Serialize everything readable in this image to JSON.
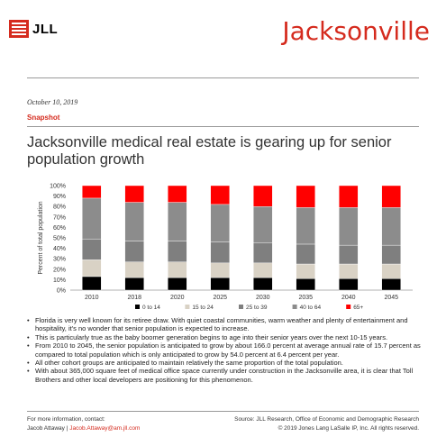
{
  "header": {
    "logo_text": "JLL",
    "city": "Jacksonville"
  },
  "meta": {
    "date": "October 10, 2019",
    "section": "Snapshot"
  },
  "headline": "Jacksonville medical real estate is gearing up for senior population growth",
  "chart_data": {
    "type": "bar",
    "stacked": true,
    "normalized": true,
    "categories": [
      "2010",
      "2018",
      "2020",
      "2025",
      "2030",
      "2035",
      "2040",
      "2045"
    ],
    "series": [
      {
        "name": "0 to 14",
        "color": "#000000",
        "values": [
          13,
          12,
          12,
          12,
          12,
          11,
          11,
          11
        ]
      },
      {
        "name": "15 to 24",
        "color": "#d9d2c5",
        "values": [
          16,
          15,
          15,
          14,
          14,
          14,
          14,
          14
        ]
      },
      {
        "name": "25 to 39",
        "color": "#7f7f7f",
        "values": [
          20,
          20,
          20,
          20,
          19,
          19,
          18,
          18
        ]
      },
      {
        "name": "40 to 64",
        "color": "#8c8c8c",
        "values": [
          39,
          37,
          37,
          36,
          35,
          35,
          36,
          36
        ]
      },
      {
        "name": "65+",
        "color": "#ff0000",
        "values": [
          12,
          16,
          16,
          18,
          20,
          21,
          21,
          21
        ]
      }
    ],
    "ylabel": "Percent of total population",
    "ylim": [
      0,
      100
    ],
    "yticks": [
      "0%",
      "10%",
      "20%",
      "30%",
      "40%",
      "50%",
      "60%",
      "70%",
      "80%",
      "90%",
      "100%"
    ],
    "legend_position": "bottom"
  },
  "bullets": [
    "Florida is very well known for its retiree draw.  With quiet coastal communities, warm weather and plenty of entertainment and hospitality, it's no wonder that senior population is expected to increase.",
    "This is particularly true as the baby boomer generation begins to age into their senior years over the next 10-15 years.",
    "From 2010 to 2045, the senior population is anticipated to grow by about 166.0 percent at average annual rate of 15.7 percent as compared to total population which is only anticipated to grow by 54.0 percent at 6.4 percent per year.",
    "All other cohort groups are anticipated to maintain relatively the same proportion of the total population.",
    "With about 365,000 square feet of medical office space currently under construction in the Jacksonville area, it is clear that Toll Brothers and other local developers are positioning for this phenomenon."
  ],
  "footer": {
    "contact_label": "For more information, contact:",
    "contact_name": "Jacob Attaway",
    "separator": "|",
    "contact_email": "Jacob.Attaway@am.jll.com",
    "source": "Source: JLL Research, Office of Economic and Demographic Research",
    "copyright": "© 2019 Jones Lang LaSalle IP, Inc. All rights reserved."
  }
}
